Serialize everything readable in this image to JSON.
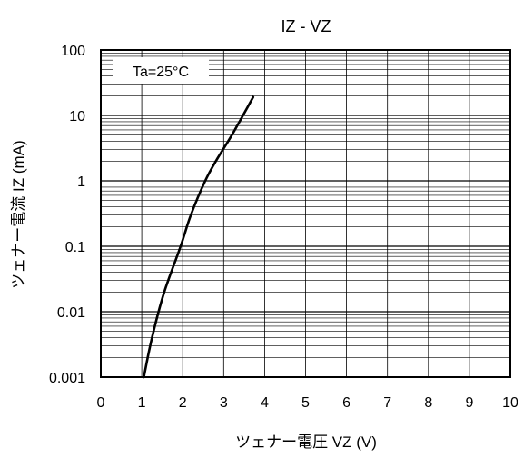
{
  "chart_data": {
    "type": "line",
    "title": "IZ - VZ",
    "xlabel": "ツェナー電圧 VZ (V)",
    "ylabel": "ツェナー電流 IZ (mA)",
    "xlim": [
      0,
      10
    ],
    "ylim": [
      0.001,
      100
    ],
    "y_scale": "log",
    "grid": true,
    "x_ticks": [
      "0",
      "1",
      "2",
      "3",
      "4",
      "5",
      "6",
      "7",
      "8",
      "9",
      "10"
    ],
    "y_ticks": [
      "0.001",
      "0.01",
      "0.1",
      "1",
      "10",
      "100"
    ],
    "annotations": [
      "Ta=25°C"
    ],
    "series": [
      {
        "x": [
          1.05,
          1.25,
          1.55,
          1.95,
          2.2,
          2.55,
          2.85,
          3.2,
          3.72
        ],
        "y": [
          0.001,
          0.004,
          0.02,
          0.1,
          0.3,
          1.0,
          2.2,
          5.0,
          19
        ]
      }
    ]
  }
}
